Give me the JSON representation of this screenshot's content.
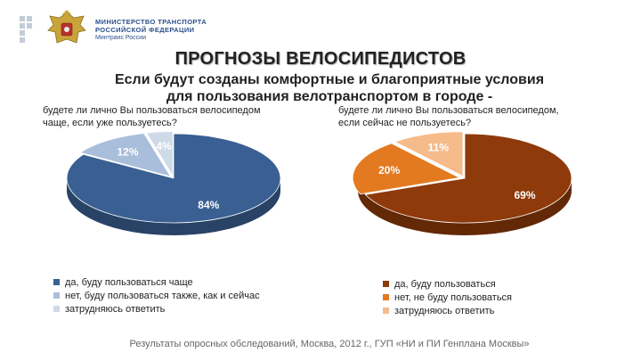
{
  "header": {
    "ministry_line1": "МИНИСТЕРСТВО ТРАНСПОРТА",
    "ministry_line2": "РОССИЙСКОЙ ФЕДЕРАЦИИ",
    "ministry_line3": "Минтранс России",
    "logo_icon": "coat-of-arms-icon"
  },
  "title": "ПРОГНОЗЫ ВЕЛОСИПЕДИСТОВ",
  "subtitle_line1": "Если будут созданы комфортные и благоприятные условия",
  "subtitle_line2": "для пользования велотранспортом в городе -",
  "chart_data": [
    {
      "type": "pie",
      "question_line1": "будете ли лично Вы пользоваться велосипедом",
      "question_line2": "чаще, если уже пользуетесь?",
      "categories": [
        "да, буду пользоваться чаще",
        "нет, буду пользоваться также, как и сейчас",
        "затрудняюсь ответить"
      ],
      "values": [
        84,
        12,
        4
      ],
      "value_labels": [
        "84%",
        "12%",
        "4%"
      ],
      "colors": [
        "#3a5f92",
        "#a9bedb",
        "#cfdae9"
      ],
      "legend_position": "bottom"
    },
    {
      "type": "pie",
      "question_line1": "будете ли лично Вы пользоваться велосипедом,",
      "question_line2": "если сейчас не пользуетесь?",
      "categories": [
        "да, буду пользоваться",
        "нет, не буду пользоваться",
        "затрудняюсь ответить"
      ],
      "values": [
        69,
        20,
        11
      ],
      "value_labels": [
        "69%",
        "20%",
        "11%"
      ],
      "colors": [
        "#8e3a0a",
        "#e37a1f",
        "#f6bb8a"
      ],
      "legend_position": "bottom"
    }
  ],
  "source_note": "Результаты опросных обследований, Москва, 2012 г., ГУП «НИ и ПИ Генплана Москвы»"
}
